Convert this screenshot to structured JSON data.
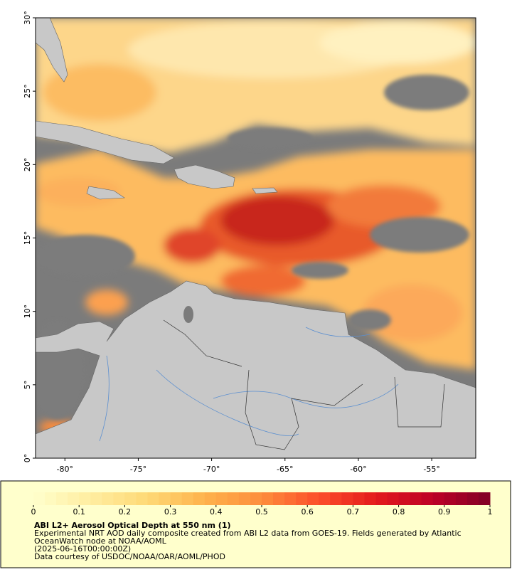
{
  "map": {
    "xlim": [
      -82,
      -52
    ],
    "ylim": [
      0,
      30
    ],
    "xticks": [
      {
        "value": -80,
        "label": "-80°"
      },
      {
        "value": -75,
        "label": "-75°"
      },
      {
        "value": -70,
        "label": "-70°"
      },
      {
        "value": -65,
        "label": "-65°"
      },
      {
        "value": -60,
        "label": "-60°"
      },
      {
        "value": -55,
        "label": "-55°"
      }
    ],
    "yticks": [
      {
        "value": 0,
        "label": "0°"
      },
      {
        "value": 5,
        "label": "5°"
      },
      {
        "value": 10,
        "label": "10°"
      },
      {
        "value": 15,
        "label": "15°"
      },
      {
        "value": 20,
        "label": "20°"
      },
      {
        "value": 25,
        "label": "25°"
      },
      {
        "value": 30,
        "label": "30°"
      }
    ]
  },
  "colorbar": {
    "range": [
      0,
      1
    ],
    "ticks": [
      0,
      0.1,
      0.2,
      0.3,
      0.4,
      0.5,
      0.6,
      0.7,
      0.8,
      0.9,
      1
    ],
    "colors": [
      "#ffffcc",
      "#ffeda0",
      "#fed976",
      "#feb24c",
      "#fd8d3c",
      "#fc4e2a",
      "#e31a1c",
      "#bd0026",
      "#800026"
    ]
  },
  "caption": {
    "title": "ABI L2+ Aerosol Optical Depth at 550 nm (1)",
    "lines": [
      "Experimental NRT AOD daily composite created from ABI L2 data from GOES-19. Fields generated by Atlantic",
      "OceanWatch node at NOAA/AOML",
      "(2025-06-16T00:00:00Z)",
      "Data courtesy of USDOC/NOAA/OAR/AOML/PHOD"
    ]
  }
}
